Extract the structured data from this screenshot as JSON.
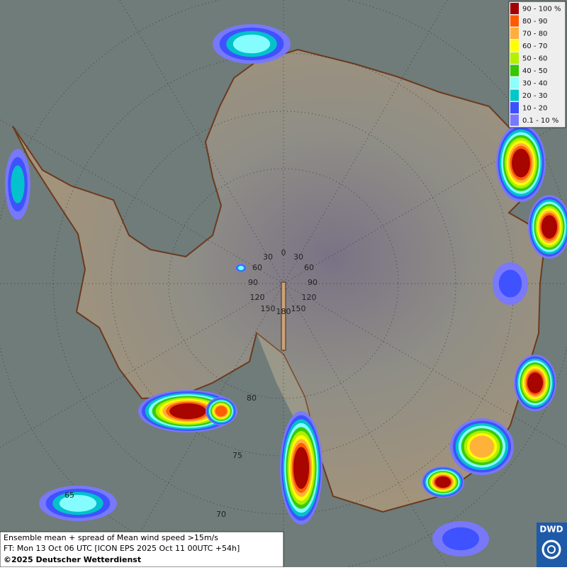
{
  "legend": {
    "items": [
      {
        "label": "90 - 100 %",
        "color": "#a30000"
      },
      {
        "label": "80 - 90",
        "color": "#ff5a00"
      },
      {
        "label": "70 - 80",
        "color": "#ffae3c"
      },
      {
        "label": "60 - 70",
        "color": "#ffff00"
      },
      {
        "label": "50 - 60",
        "color": "#b4f000"
      },
      {
        "label": "40 - 50",
        "color": "#34c800"
      },
      {
        "label": "30 - 40",
        "color": "#8cffff"
      },
      {
        "label": "20 - 30",
        "color": "#00c8c8"
      },
      {
        "label": "10 - 20",
        "color": "#3c50ff"
      },
      {
        "label": "0.1 - 10 %",
        "color": "#7878ff"
      }
    ]
  },
  "graticule": {
    "longitude_labels": [
      "0",
      "30",
      "30",
      "60",
      "60",
      "90",
      "90",
      "120",
      "120",
      "150",
      "150",
      "180"
    ],
    "latitude_labels": [
      "80",
      "75",
      "70",
      "65"
    ]
  },
  "caption": {
    "line1": "Ensemble mean + spread of Mean wind speed >15m/s",
    "line2": "FT: Mon 13 Oct 06 UTC [ICON EPS 2025 Oct 11 00UTC +54h]",
    "line3": "©2025 Deutscher Wetterdienst"
  },
  "logo": {
    "text": "DWD"
  }
}
